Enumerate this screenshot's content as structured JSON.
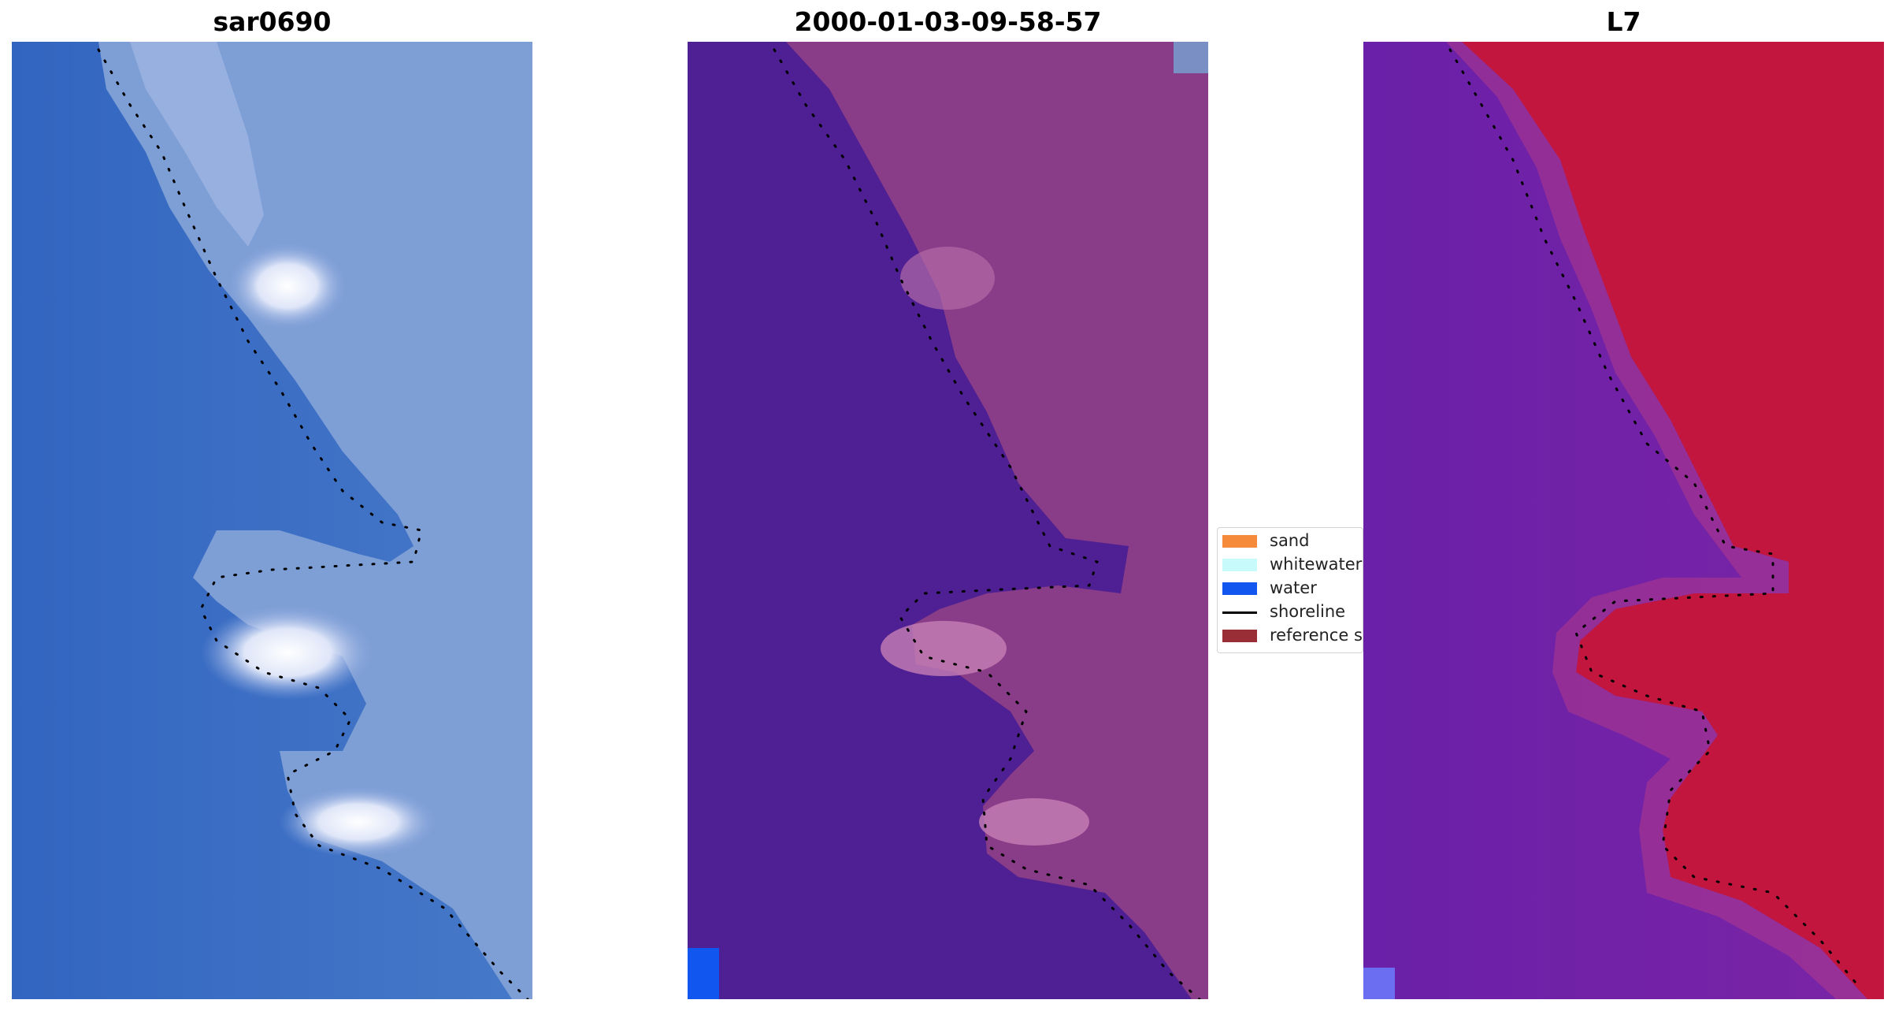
{
  "panels": [
    {
      "id": "rgb",
      "title": "sar0690"
    },
    {
      "id": "classified",
      "title": "2000-01-03-09-58-57"
    },
    {
      "id": "index",
      "title": "L7"
    }
  ],
  "legend": {
    "items": [
      {
        "label": "sand",
        "color": "#f58a3a"
      },
      {
        "label": "whitewater",
        "color": "#c7fbfb"
      },
      {
        "label": "water",
        "color": "#1256f0"
      },
      {
        "label": "shoreline",
        "color": "#000000"
      },
      {
        "label": "reference shoreline buffer",
        "color": "#9a2e36"
      }
    ]
  },
  "colors": {
    "rgb_water": "#3a6cc4",
    "rgb_land": "#7fa2d8",
    "classified_water": "#4f1f94",
    "classified_land": "#8a3c86",
    "index_low": "#6d1fa7",
    "index_high": "#c8133c"
  }
}
